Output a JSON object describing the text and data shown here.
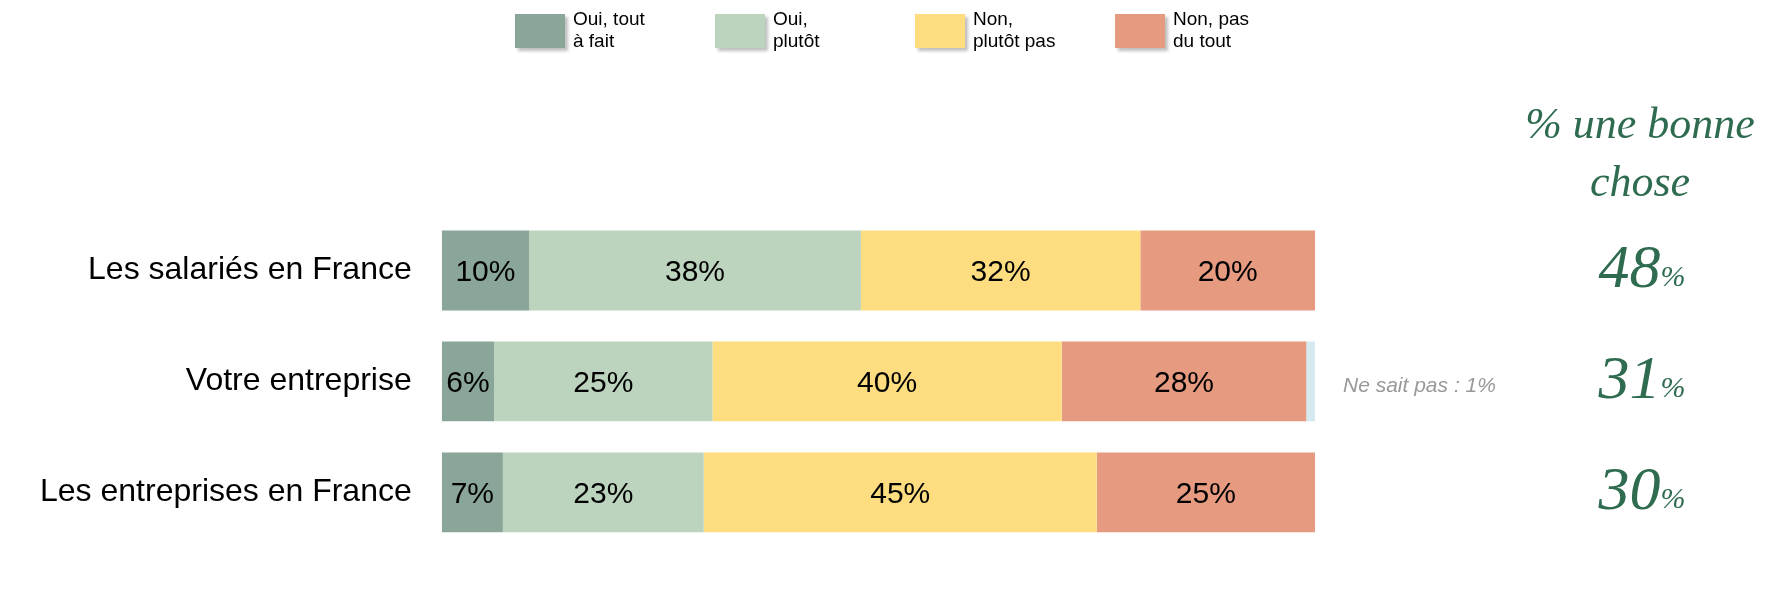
{
  "chart_data": {
    "type": "bar",
    "orientation": "horizontal",
    "stacked": true,
    "categories": [
      "Les salariés en France",
      "Votre entreprise",
      "Les entreprises en France"
    ],
    "xlim": [
      0,
      100
    ],
    "tick_labels": "y",
    "grid": false,
    "legend": "top",
    "series": [
      {
        "name": "Oui, tout à fait",
        "color": "#8aa699",
        "values": [
          10,
          6,
          7
        ],
        "value_labels": [
          "10%",
          "6%",
          "7%"
        ]
      },
      {
        "name": "Oui, plutôt",
        "color": "#bcd3be",
        "values": [
          38,
          25,
          23
        ],
        "value_labels": [
          "38%",
          "25%",
          "23%"
        ]
      },
      {
        "name": "Non, plutôt pas",
        "color": "#fddd80",
        "values": [
          32,
          40,
          45
        ],
        "value_labels": [
          "32%",
          "40%",
          "45%"
        ]
      },
      {
        "name": "Non, pas du tout",
        "color": "#e69a80",
        "values": [
          20,
          28,
          25
        ],
        "value_labels": [
          "20%",
          "28%",
          "25%"
        ]
      },
      {
        "color": "#d5eaf0",
        "values": [
          null,
          1,
          null
        ],
        "value_labels": [
          null,
          null,
          null
        ]
      }
    ],
    "annotations": [
      "% une bonne chose",
      "48%",
      "31%",
      "30%",
      "Ne sait pas : 1%"
    ]
  }
}
